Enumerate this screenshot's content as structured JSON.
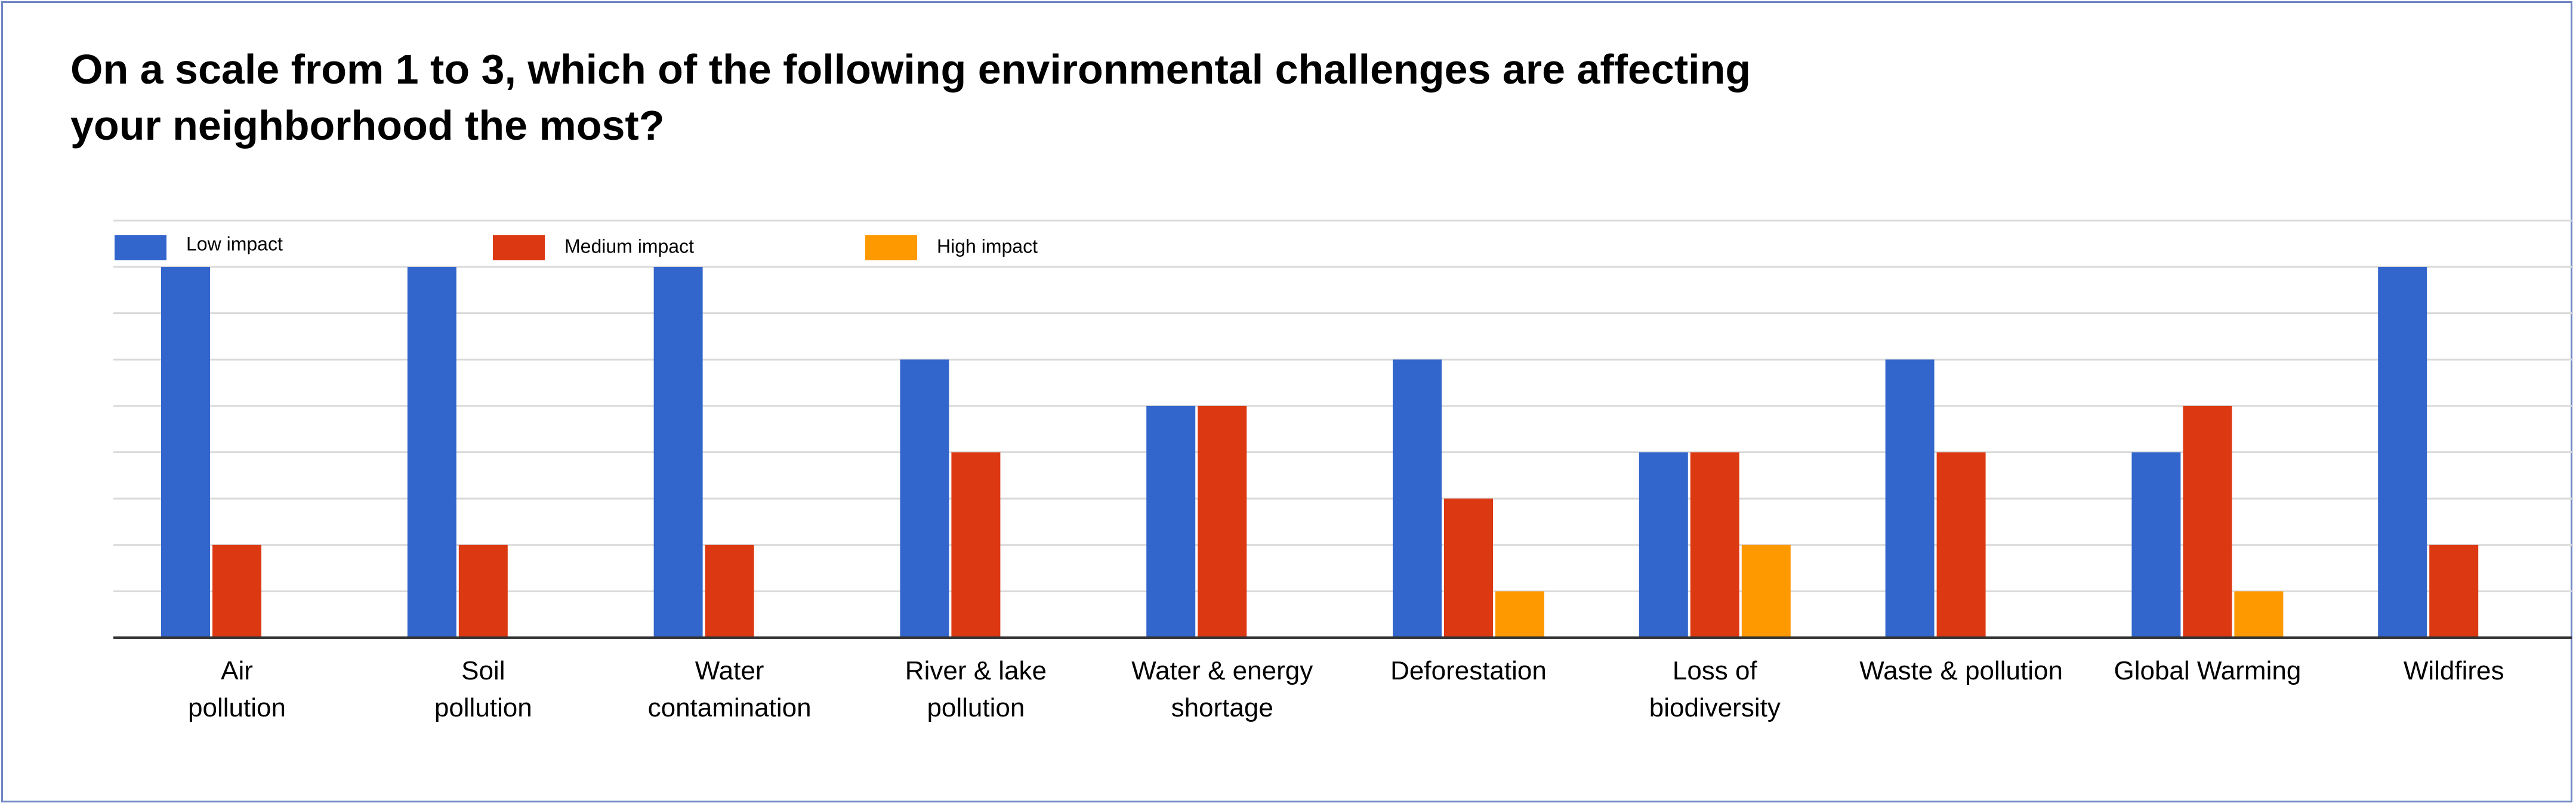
{
  "title_lines": [
    "On a scale from 1 to 3, which of the following environmental challenges are affecting",
    "your neighborhood the most?"
  ],
  "colors": {
    "series": [
      "#3366cc",
      "#dc3912",
      "#ff9900"
    ],
    "grid": "#d9d9d9",
    "axis": "#333333",
    "frame": "#6f86c4"
  },
  "chart_data": {
    "type": "bar",
    "title": "On a scale from 1 to 3, which of the following environmental challenges are affecting your neighborhood the most?",
    "xlabel": "",
    "ylabel": "",
    "ylim": [
      0,
      8
    ],
    "grid": true,
    "legend_position": "top-left",
    "categories": [
      [
        "Air",
        "pollution"
      ],
      [
        "Soil",
        "pollution"
      ],
      [
        "Water",
        "contamination"
      ],
      [
        "River & lake",
        "pollution"
      ],
      [
        "Water & energy",
        "shortage"
      ],
      [
        "Deforestation"
      ],
      [
        "Loss of",
        "biodiversity"
      ],
      [
        "Waste & pollution"
      ],
      [
        "Global Warming"
      ],
      [
        "Wildfires"
      ]
    ],
    "series": [
      {
        "name": "Low impact",
        "values": [
          8,
          8,
          8,
          6,
          5,
          6,
          4,
          6,
          4,
          8
        ]
      },
      {
        "name": "Medium impact",
        "values": [
          2,
          2,
          2,
          4,
          5,
          3,
          4,
          4,
          5,
          2
        ]
      },
      {
        "name": "High impact",
        "values": [
          0,
          0,
          0,
          0,
          0,
          1,
          2,
          0,
          1,
          0
        ]
      }
    ]
  }
}
